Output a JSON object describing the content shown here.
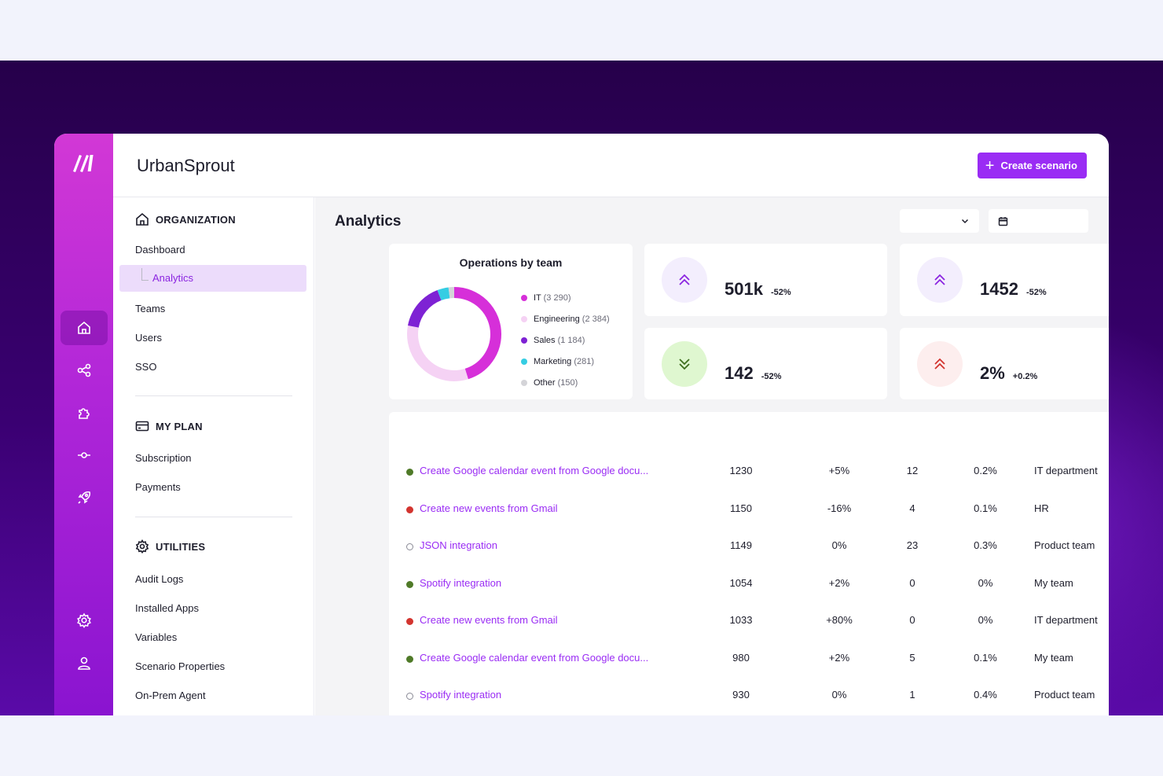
{
  "app": {
    "title": "UrbanSprout"
  },
  "header": {
    "create_label": "Create scenario"
  },
  "sidebar": {
    "organization": {
      "heading": "ORGANIZATION",
      "items": [
        {
          "label": "Dashboard"
        },
        {
          "label": "Analytics",
          "active": true
        },
        {
          "label": "Teams"
        },
        {
          "label": "Users"
        },
        {
          "label": "SSO"
        }
      ]
    },
    "plan": {
      "heading": "MY PLAN",
      "items": [
        {
          "label": "Subscription"
        },
        {
          "label": "Payments"
        }
      ]
    },
    "utilities": {
      "heading": "UTILITIES",
      "items": [
        {
          "label": "Audit Logs"
        },
        {
          "label": "Installed Apps"
        },
        {
          "label": "Variables"
        },
        {
          "label": "Scenario Properties"
        },
        {
          "label": "On-Prem Agent"
        }
      ]
    }
  },
  "rail": {
    "icons": [
      "home-icon",
      "share-icon",
      "puzzle-icon",
      "commit-icon",
      "rocket-icon",
      "gear-icon",
      "user-icon"
    ],
    "active": "home-icon"
  },
  "main": {
    "title": "Analytics",
    "filter": {
      "selected": ""
    },
    "date": {
      "value": ""
    }
  },
  "chart_data": {
    "type": "pie",
    "title": "Operations by team",
    "donut": true,
    "legend_position": "right",
    "slices": [
      {
        "label": "IT",
        "display": "(3 290)",
        "value": 3290,
        "color": "#d62fd9"
      },
      {
        "label": "Engineering",
        "display": "(2 384)",
        "value": 2384,
        "color": "#f5d2f4"
      },
      {
        "label": "Sales",
        "display": "(1 184)",
        "value": 1184,
        "color": "#7e22d4"
      },
      {
        "label": "Marketing",
        "display": "(281)",
        "value": 281,
        "color": "#35cde3"
      },
      {
        "label": "Other",
        "display": "(150)",
        "value": 150,
        "color": "#d4d4d8"
      }
    ]
  },
  "stats": [
    {
      "value": "501k",
      "delta": "-52%",
      "icon": "chevrons-up-icon",
      "bg": "#f3eefd",
      "fg": "#8b25e0"
    },
    {
      "value": "1452",
      "delta": "-52%",
      "icon": "chevrons-up-icon",
      "bg": "#f3eefd",
      "fg": "#8b25e0"
    },
    {
      "value": "142",
      "delta": "-52%",
      "icon": "chevrons-down-icon",
      "bg": "#dff7d0",
      "fg": "#3f6f1f"
    },
    {
      "value": "2%",
      "delta": "+0.2%",
      "icon": "chevrons-up-icon",
      "bg": "#fdeeee",
      "fg": "#d3342f"
    }
  ],
  "table": {
    "rows": [
      {
        "status": "green",
        "name": "Create Google calendar event from Google docu...",
        "ops": "1230",
        "change": "+5%",
        "count": "12",
        "rate": "0.2%",
        "team": "IT department"
      },
      {
        "status": "red",
        "name": "Create new events from Gmail",
        "ops": "1150",
        "change": "-16%",
        "count": "4",
        "rate": "0.1%",
        "team": "HR"
      },
      {
        "status": "inactive",
        "name": "JSON integration",
        "ops": "1149",
        "change": "0%",
        "count": "23",
        "rate": "0.3%",
        "team": "Product team"
      },
      {
        "status": "green",
        "name": "Spotify integration",
        "ops": "1054",
        "change": "+2%",
        "count": "0",
        "rate": "0%",
        "team": "My team"
      },
      {
        "status": "red",
        "name": "Create new events from Gmail",
        "ops": "1033",
        "change": "+80%",
        "count": "0",
        "rate": "0%",
        "team": "IT department"
      },
      {
        "status": "green",
        "name": "Create Google calendar event from Google docu...",
        "ops": "980",
        "change": "+2%",
        "count": "5",
        "rate": "0.1%",
        "team": "My team"
      },
      {
        "status": "inactive",
        "name": "Spotify integration",
        "ops": "930",
        "change": "0%",
        "count": "1",
        "rate": "0.4%",
        "team": "Product team"
      }
    ]
  },
  "colors": {
    "accent": "#9a2cf4",
    "green": "#4f7a28",
    "red": "#d3342f"
  }
}
